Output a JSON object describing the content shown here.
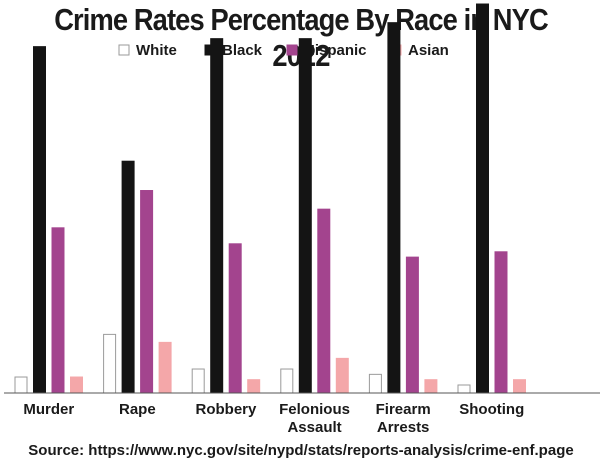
{
  "chart_data": {
    "type": "bar",
    "title": "Crime Rates Percentage By Race in NYC 2022",
    "xlabel": "",
    "ylabel": "",
    "ylim": [
      0,
      70
    ],
    "grid": false,
    "legend_position": "top-center",
    "categories": [
      "Murder",
      "Rape",
      "Robbery",
      "Felonious Assault",
      "Firearm Arrests",
      "Shooting"
    ],
    "category_lines": [
      [
        "Murder"
      ],
      [
        "Rape"
      ],
      [
        "Robbery"
      ],
      [
        "Felonious",
        "Assault"
      ],
      [
        "Firearm",
        "Arrests"
      ],
      [
        "Shooting"
      ]
    ],
    "series": [
      {
        "name": "White",
        "color": "#ffffff",
        "stroke": "#9a9a9a",
        "values": [
          3,
          11,
          4.5,
          4.5,
          3.5,
          1.5
        ]
      },
      {
        "name": "Black",
        "color": "#141414",
        "stroke": "#141414",
        "values": [
          65,
          43.5,
          66.5,
          66.5,
          69.5,
          73
        ]
      },
      {
        "name": "Hispanic",
        "color": "#a3448e",
        "stroke": "#a3448e",
        "values": [
          31,
          38,
          28,
          34.5,
          25.5,
          26.5
        ]
      },
      {
        "name": "Asian",
        "color": "#f4a7a9",
        "stroke": "#f4a7a9",
        "values": [
          3,
          9.5,
          2.5,
          6.5,
          2.5,
          2.5
        ]
      }
    ],
    "source": "Source:  https://www.nyc.gov/site/nypd/stats/reports-analysis/crime-enf.page"
  }
}
